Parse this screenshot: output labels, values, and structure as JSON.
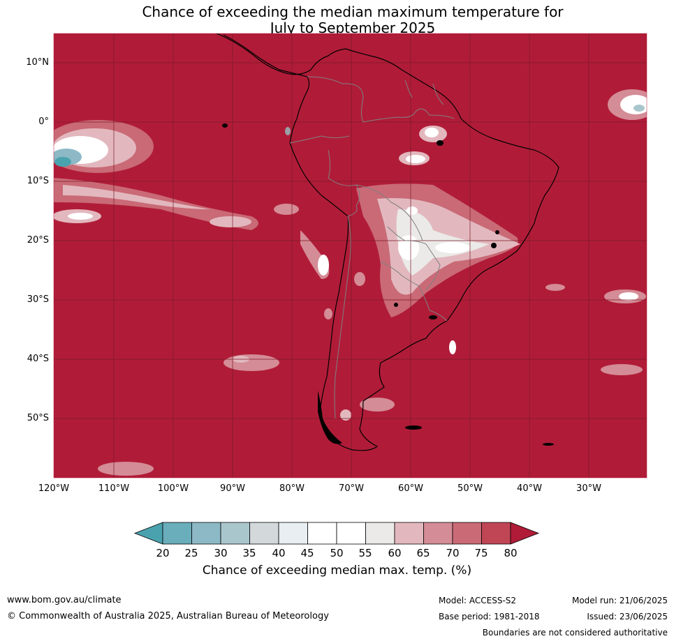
{
  "title_line1": "Chance of exceeding the median maximum temperature for",
  "title_line2": "July to September 2025",
  "lat_labels": [
    "10°N",
    "0°",
    "10°S",
    "20°S",
    "30°S",
    "40°S",
    "50°S"
  ],
  "lon_labels": [
    "120°W",
    "110°W",
    "100°W",
    "90°W",
    "80°W",
    "70°W",
    "60°W",
    "50°W",
    "40°W",
    "30°W"
  ],
  "colorbar": {
    "ticks": [
      "20",
      "25",
      "30",
      "35",
      "40",
      "45",
      "50",
      "55",
      "60",
      "65",
      "70",
      "75",
      "80"
    ],
    "colors": [
      "#4aa2ae",
      "#6aadbb",
      "#8cb9c5",
      "#aac6cd",
      "#d3d8da",
      "#e8eef1",
      "#ffffff",
      "#ffffff",
      "#ebeae8",
      "#e2b8be",
      "#d48c96",
      "#c96a76",
      "#c04656",
      "#b01c38"
    ],
    "label": "Chance of exceeding median max. temp. (%)"
  },
  "colors": {
    "background_warm": "#b01c38",
    "coast": "#000000",
    "border": "#808080",
    "grid": "#7a1a28"
  },
  "footer": {
    "url": "www.bom.gov.au/climate",
    "copyright": "© Commonwealth of Australia 2025, Australian Bureau of Meteorology",
    "model": "Model: ACCESS-S2",
    "base_period": "Base period: 1981-2018",
    "model_run": "Model run: 21/06/2025",
    "issued": "Issued: 23/06/2025",
    "disclaimer": "Boundaries are not considered authoritative"
  }
}
